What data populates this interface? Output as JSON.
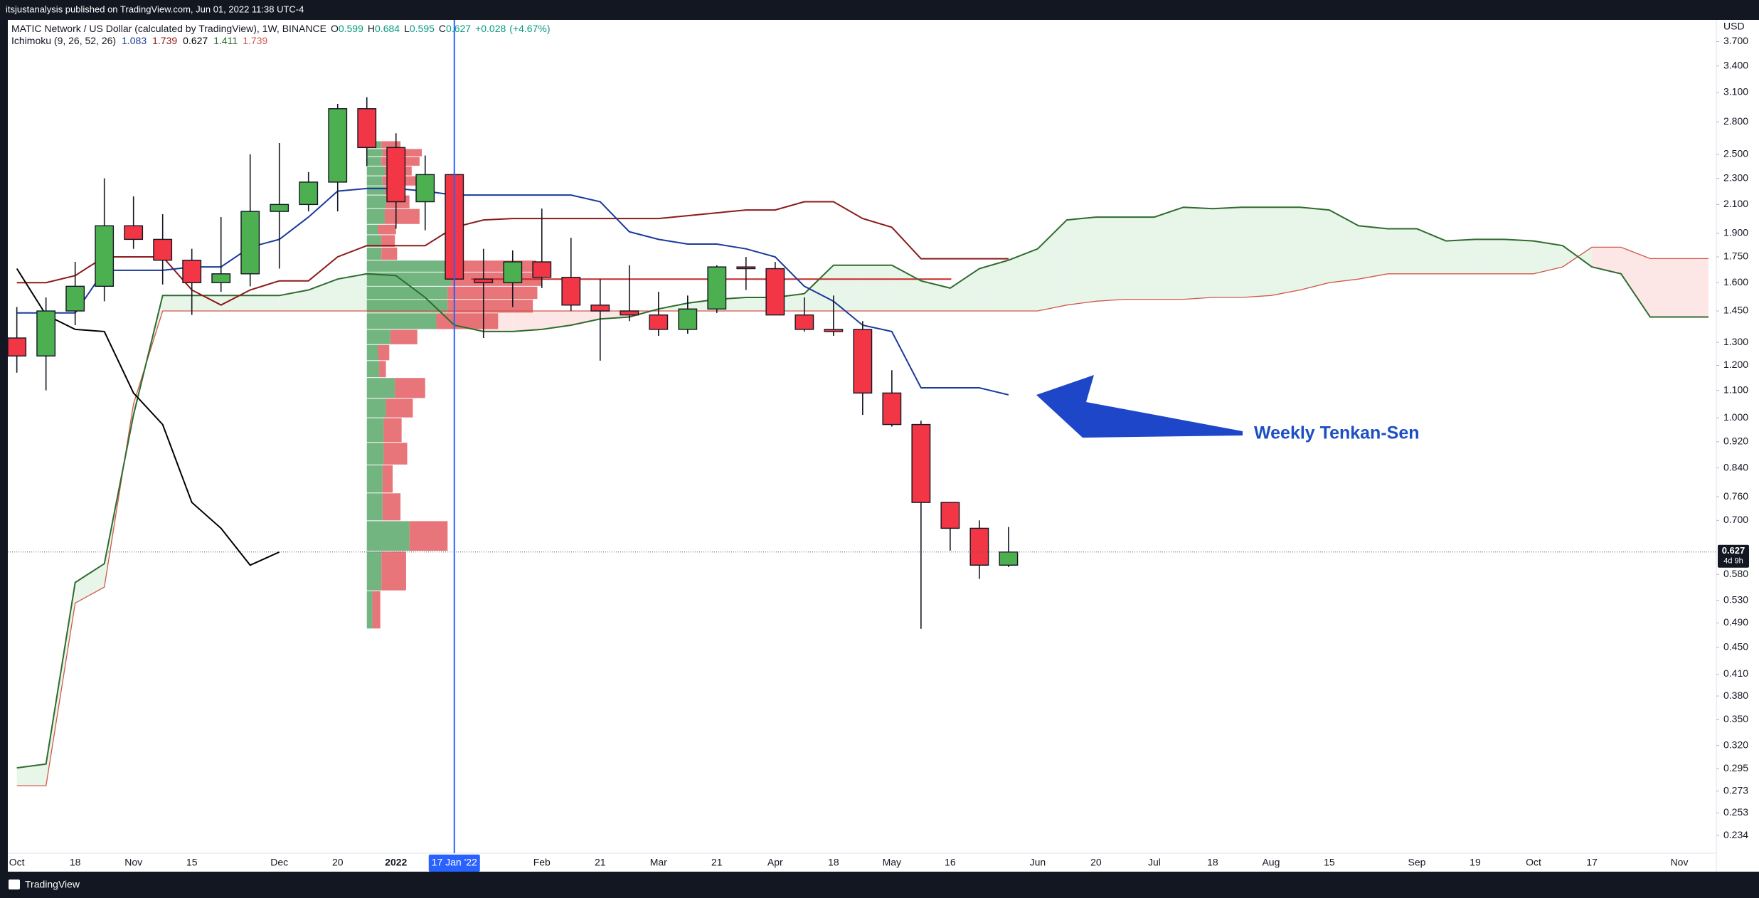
{
  "chart_data": {
    "type": "candlestick",
    "publisher": "itsjustanalysis published on TradingView.com, Jun 01, 2022 11:38 UTC-4",
    "title": "MATIC Network / US Dollar (calculated by TradingView), 1W, BINANCE",
    "ohlc_labels": [
      "O",
      "H",
      "L",
      "C"
    ],
    "change": "+0.028",
    "change_percent": "(+4.67%)",
    "ichimoku_label": "Ichimoku (9, 26, 52, 26)",
    "ichimoku_values": [
      {
        "value": 1.083,
        "color": "#1a3a9c"
      },
      {
        "value": 1.739,
        "color": "#8b1a1a"
      },
      {
        "value": 0.627,
        "color": "#000000"
      },
      {
        "value": 1.411,
        "color": "#2e6b2e"
      },
      {
        "value": 1.739,
        "color": "#d0584a"
      }
    ],
    "y_axis_label": "USD",
    "price_tag_time": "4d 9h",
    "annotation": "Weekly Tenkan-Sen",
    "brand": "TradingView",
    "log_scale": true,
    "grid": false,
    "ylim": [
      0.22,
      3.99
    ],
    "yticks": [
      {
        "value": 3.7,
        "label": "3.700"
      },
      {
        "value": 3.4,
        "label": "3.400"
      },
      {
        "value": 3.1,
        "label": "3.100"
      },
      {
        "value": 2.8,
        "label": "2.800"
      },
      {
        "value": 2.5,
        "label": "2.500"
      },
      {
        "value": 2.3,
        "label": "2.300"
      },
      {
        "value": 2.1,
        "label": "2.100"
      },
      {
        "value": 1.9,
        "label": "1.900"
      },
      {
        "value": 1.75,
        "label": "1.750"
      },
      {
        "value": 1.6,
        "label": "1.600"
      },
      {
        "value": 1.45,
        "label": "1.450"
      },
      {
        "value": 1.3,
        "label": "1.300"
      },
      {
        "value": 1.2,
        "label": "1.200"
      },
      {
        "value": 1.1,
        "label": "1.100"
      },
      {
        "value": 1.0,
        "label": "1.000"
      },
      {
        "value": 0.92,
        "label": "0.920"
      },
      {
        "value": 0.84,
        "label": "0.840"
      },
      {
        "value": 0.76,
        "label": "0.760"
      },
      {
        "value": 0.7,
        "label": "0.700"
      },
      {
        "value": 0.58,
        "label": "0.580"
      },
      {
        "value": 0.53,
        "label": "0.530"
      },
      {
        "value": 0.49,
        "label": "0.490"
      },
      {
        "value": 0.45,
        "label": "0.450"
      },
      {
        "value": 0.41,
        "label": "0.410"
      },
      {
        "value": 0.38,
        "label": "0.380"
      },
      {
        "value": 0.35,
        "label": "0.350"
      },
      {
        "value": 0.32,
        "label": "0.320"
      },
      {
        "value": 0.295,
        "label": "0.295"
      },
      {
        "value": 0.273,
        "label": "0.273"
      },
      {
        "value": 0.253,
        "label": "0.253"
      },
      {
        "value": 0.234,
        "label": "0.234"
      }
    ],
    "categories": [
      "Oct",
      null,
      "18",
      null,
      "Nov",
      null,
      "15",
      null,
      null,
      "Dec",
      null,
      "20",
      null,
      "2022",
      null,
      "17 Jan '22",
      null,
      null,
      "Feb",
      null,
      "21",
      null,
      "Mar",
      null,
      "21",
      null,
      "Apr",
      null,
      "18",
      null,
      "May",
      null,
      "16",
      null,
      null,
      "Jun",
      null,
      "20",
      null,
      "Jul",
      null,
      "18",
      null,
      "Aug",
      null,
      "15",
      null,
      null,
      "Sep",
      null,
      "19",
      null,
      "Oct",
      null,
      "17",
      null,
      null,
      "Nov",
      null
    ],
    "crosshair": "17 Jan '22",
    "up_color": "#4caf50",
    "down_color": "#f23645",
    "open": [
      1.32,
      1.24,
      1.45,
      1.58,
      1.95,
      1.86,
      1.73,
      1.6,
      1.65,
      2.05,
      2.1,
      2.27,
      2.93,
      2.56,
      2.12,
      2.33,
      1.62,
      1.6,
      1.72,
      1.63,
      1.48,
      1.45,
      1.43,
      1.36,
      1.46,
      1.69,
      1.68,
      1.43,
      1.36,
      1.36,
      1.09,
      0.977,
      0.745,
      0.681,
      0.599,
      null,
      null,
      null,
      null,
      null,
      null,
      null,
      null,
      null,
      null,
      null,
      null,
      null,
      null,
      null,
      null,
      null,
      null,
      null,
      null,
      null,
      null,
      null,
      null
    ],
    "high": [
      1.47,
      1.52,
      1.72,
      2.3,
      2.16,
      2.03,
      1.8,
      2.01,
      2.5,
      2.6,
      2.35,
      2.98,
      3.05,
      2.69,
      2.49,
      2.37,
      1.8,
      1.79,
      2.07,
      1.87,
      1.62,
      1.7,
      1.55,
      1.53,
      1.7,
      1.75,
      1.72,
      1.52,
      1.53,
      1.4,
      1.18,
      0.99,
      0.745,
      0.7,
      0.684,
      null,
      null,
      null,
      null,
      null,
      null,
      null,
      null,
      null,
      null,
      null,
      null,
      null,
      null,
      null,
      null,
      null,
      null,
      null,
      null,
      null,
      null,
      null,
      null
    ],
    "low": [
      1.17,
      1.1,
      1.38,
      1.5,
      1.8,
      1.59,
      1.43,
      1.55,
      1.58,
      1.68,
      2.05,
      2.05,
      2.4,
      1.93,
      1.92,
      1.55,
      1.32,
      1.47,
      1.57,
      1.45,
      1.22,
      1.4,
      1.33,
      1.34,
      1.44,
      1.56,
      1.43,
      1.35,
      1.33,
      1.01,
      0.97,
      0.48,
      0.63,
      0.571,
      0.595,
      null,
      null,
      null,
      null,
      null,
      null,
      null,
      null,
      null,
      null,
      null,
      null,
      null,
      null,
      null,
      null,
      null,
      null,
      null,
      null,
      null,
      null,
      null,
      null
    ],
    "close": [
      1.24,
      1.45,
      1.58,
      1.95,
      1.86,
      1.73,
      1.6,
      1.65,
      2.05,
      2.1,
      2.27,
      2.93,
      2.56,
      2.12,
      2.33,
      1.62,
      1.6,
      1.72,
      1.63,
      1.48,
      1.45,
      1.43,
      1.36,
      1.46,
      1.69,
      1.68,
      1.43,
      1.36,
      1.35,
      1.09,
      0.977,
      0.745,
      0.681,
      0.599,
      0.627,
      null,
      null,
      null,
      null,
      null,
      null,
      null,
      null,
      null,
      null,
      null,
      null,
      null,
      null,
      null,
      null,
      null,
      null,
      null,
      null,
      null,
      null,
      null,
      null
    ],
    "ichimoku": {
      "conversion": {
        "color": "#1a3a9c",
        "values": [
          1.44,
          1.44,
          1.44,
          1.67,
          1.67,
          1.67,
          1.69,
          1.69,
          1.81,
          1.86,
          2.01,
          2.2,
          2.22,
          2.22,
          2.2,
          2.17,
          2.17,
          2.17,
          2.17,
          2.17,
          2.12,
          1.91,
          1.86,
          1.83,
          1.83,
          1.8,
          1.75,
          1.58,
          1.5,
          1.38,
          1.35,
          1.11,
          1.11,
          1.11,
          1.083,
          null,
          null,
          null,
          null,
          null,
          null,
          null,
          null,
          null,
          null,
          null,
          null,
          null,
          null,
          null,
          null,
          null,
          null,
          null,
          null,
          null,
          null,
          null,
          null
        ]
      },
      "base": {
        "color": "#8b1a1a",
        "values": [
          1.6,
          1.6,
          1.64,
          1.75,
          1.75,
          1.75,
          1.56,
          1.48,
          1.56,
          1.61,
          1.61,
          1.75,
          1.82,
          1.82,
          1.82,
          1.94,
          1.99,
          2.0,
          2.0,
          2.0,
          2.0,
          2.0,
          2.0,
          2.02,
          2.04,
          2.06,
          2.06,
          2.12,
          2.12,
          2.0,
          1.94,
          1.739,
          1.739,
          1.739,
          1.739,
          null,
          null,
          null,
          null,
          null,
          null,
          null,
          null,
          null,
          null,
          null,
          null,
          null,
          null,
          null,
          null,
          null,
          null,
          null,
          null,
          null,
          null,
          null,
          null
        ]
      },
      "lagging": {
        "color": "#000000",
        "values": [
          1.68,
          1.43,
          1.36,
          1.35,
          1.09,
          0.977,
          0.745,
          0.681,
          0.599,
          0.627,
          null,
          null,
          null,
          null,
          null,
          null,
          null,
          null,
          null,
          null,
          null,
          null,
          null,
          null,
          null,
          null,
          null,
          null,
          null,
          null,
          null,
          null,
          null,
          null,
          null,
          null,
          null,
          null,
          null,
          null,
          null,
          null,
          null,
          null,
          null,
          null,
          null,
          null,
          null,
          null,
          null,
          null,
          null,
          null,
          null,
          null,
          null,
          null,
          null
        ]
      },
      "lead_a": {
        "color": "#2e6b2e",
        "values": [
          0.296,
          0.3,
          0.564,
          0.602,
          1.01,
          1.53,
          1.53,
          1.53,
          1.53,
          1.53,
          1.56,
          1.62,
          1.65,
          1.64,
          1.52,
          1.38,
          1.35,
          1.35,
          1.36,
          1.38,
          1.41,
          1.42,
          1.46,
          1.49,
          1.51,
          1.52,
          1.52,
          1.54,
          1.7,
          1.7,
          1.7,
          1.61,
          1.57,
          1.68,
          1.73,
          1.8,
          1.99,
          2.01,
          2.01,
          2.01,
          2.08,
          2.07,
          2.08,
          2.08,
          2.08,
          2.06,
          1.95,
          1.93,
          1.93,
          1.85,
          1.86,
          1.86,
          1.85,
          1.82,
          1.69,
          1.65,
          1.42,
          1.42,
          1.42
        ]
      },
      "lead_b": {
        "color": "#d0584a",
        "values": [
          0.278,
          0.278,
          0.525,
          0.555,
          1.05,
          1.45,
          1.45,
          1.45,
          1.45,
          1.45,
          1.45,
          1.45,
          1.45,
          1.45,
          1.45,
          1.45,
          1.45,
          1.45,
          1.45,
          1.45,
          1.45,
          1.45,
          1.45,
          1.45,
          1.45,
          1.45,
          1.45,
          1.45,
          1.45,
          1.45,
          1.45,
          1.45,
          1.45,
          1.45,
          1.45,
          1.45,
          1.48,
          1.5,
          1.51,
          1.51,
          1.51,
          1.52,
          1.52,
          1.53,
          1.56,
          1.6,
          1.62,
          1.65,
          1.65,
          1.65,
          1.65,
          1.65,
          1.65,
          1.69,
          1.81,
          1.81,
          1.74,
          1.74,
          1.74
        ]
      },
      "cloud_up_color": "#e8f5e9",
      "cloud_down_color": "#fde6e6"
    },
    "volume_profile": {
      "bounds": [
        2.62,
        2.55,
        2.48,
        2.4,
        2.32,
        2.24,
        2.17,
        2.07,
        1.96,
        1.89,
        1.81,
        1.73,
        1.66,
        1.58,
        1.51,
        1.44,
        1.36,
        1.29,
        1.22,
        1.15,
        1.07,
        1.0,
        0.918,
        0.849,
        0.77,
        0.699,
        0.629,
        0.548,
        0.48
      ],
      "up": [
        13,
        14,
        13,
        16,
        14,
        16,
        17,
        16,
        10,
        13,
        13,
        70,
        75,
        72,
        72,
        62,
        21,
        10,
        11,
        25,
        17,
        15,
        15,
        14,
        14,
        38,
        13,
        5
      ],
      "down": [
        17,
        35,
        34,
        24,
        36,
        16,
        21,
        31,
        16,
        12,
        14,
        81,
        81,
        80,
        76,
        55,
        24,
        10,
        6,
        27,
        24,
        16,
        21,
        9,
        16,
        34,
        22,
        7
      ],
      "up_color": "#5aa86a",
      "down_color": "#e35d62",
      "poc": 1.62,
      "poc_color": "#c62828"
    }
  }
}
